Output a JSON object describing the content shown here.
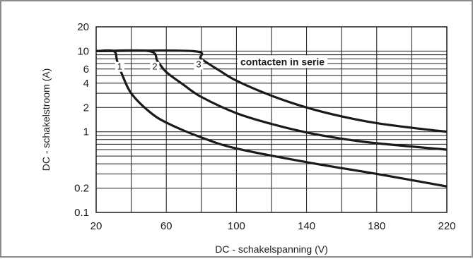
{
  "chart_data": {
    "type": "line",
    "xlabel": "DC - schakelspanning (V)",
    "ylabel": "DC - schakelstroom (A)",
    "xlim": [
      20,
      220
    ],
    "ylim": [
      0.1,
      20
    ],
    "yscale": "log",
    "grid": true,
    "x_ticks": [
      20,
      60,
      100,
      140,
      180,
      220
    ],
    "y_ticks": [
      {
        "value": 20,
        "label": "20"
      },
      {
        "value": 10,
        "label": "10"
      },
      {
        "value": 6,
        "label": "6"
      },
      {
        "value": 4,
        "label": "4"
      },
      {
        "value": 2,
        "label": "2"
      },
      {
        "value": 1,
        "label": "1"
      },
      {
        "value": 0.2,
        "label": "0.2"
      },
      {
        "value": 0.1,
        "label": "0.1"
      }
    ],
    "annotation": "contacten in serie",
    "series": [
      {
        "name": "1",
        "x": [
          20,
          30,
          32,
          35,
          40,
          50,
          60,
          80,
          100,
          140,
          180,
          220
        ],
        "y": [
          10,
          10,
          7.5,
          5,
          3,
          1.8,
          1.3,
          0.85,
          0.62,
          0.42,
          0.3,
          0.21
        ]
      },
      {
        "name": "2",
        "x": [
          20,
          50,
          55,
          60,
          70,
          80,
          100,
          120,
          140,
          160,
          180,
          220
        ],
        "y": [
          10,
          10,
          7.5,
          5.5,
          3.8,
          2.7,
          1.7,
          1.25,
          0.98,
          0.82,
          0.72,
          0.6
        ]
      },
      {
        "name": "3",
        "x": [
          20,
          75,
          80,
          90,
          100,
          120,
          140,
          160,
          180,
          200,
          220
        ],
        "y": [
          10,
          10,
          8,
          5.8,
          4.3,
          2.8,
          2.0,
          1.55,
          1.28,
          1.12,
          1.0
        ]
      }
    ]
  }
}
